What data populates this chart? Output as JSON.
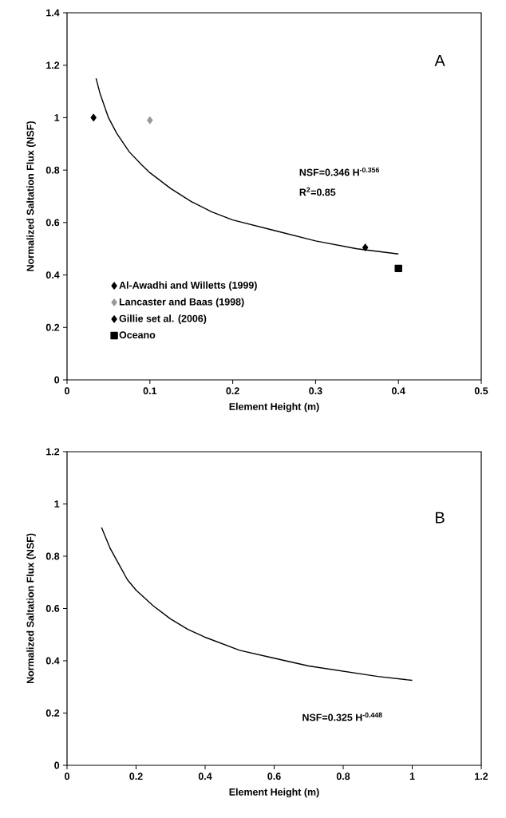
{
  "chart_data": [
    {
      "type": "scatter",
      "xlabel": "Element Height (m)",
      "ylabel": "Normalized Saltation Flux (NSF)",
      "xlim": [
        0,
        0.5
      ],
      "ylim": [
        0,
        1.4
      ],
      "xticks": [
        0,
        0.1,
        0.2,
        0.3,
        0.4,
        0.5
      ],
      "yticks": [
        0,
        0.2,
        0.4,
        0.6,
        0.8,
        1,
        1.2,
        1.4
      ],
      "grid": false,
      "legend": "bottom left",
      "annotations": [
        "A",
        "NSF=0.346 H$^{-0.356}$",
        "R$^{2}$=0.85"
      ],
      "series": [
        {
          "name": "Al-Awadhi and Willetts (1999)",
          "color": "#000000",
          "marker": "diamond",
          "x": [
            0.032
          ],
          "values": [
            1.0
          ]
        },
        {
          "name": "Lancaster and Baas (1998)",
          "color": "#999999",
          "marker": "diamond",
          "x": [
            0.1
          ],
          "values": [
            0.99
          ]
        },
        {
          "name": "Gillie set al. (2006)",
          "color": "#000000",
          "marker": "diamond",
          "x": [
            0.36
          ],
          "values": [
            0.505
          ]
        },
        {
          "name": "Oceano",
          "color": "#000000",
          "marker": "square",
          "x": [
            0.4
          ],
          "values": [
            0.425
          ]
        },
        {
          "type": "line",
          "color": "#000000",
          "marker": "none",
          "x": [
            0.035,
            0.04,
            0.05,
            0.06,
            0.075,
            0.09,
            0.1,
            0.125,
            0.15,
            0.175,
            0.2,
            0.25,
            0.3,
            0.35,
            0.4
          ],
          "values": [
            1.15,
            1.09,
            1.0,
            0.94,
            0.87,
            0.82,
            0.79,
            0.73,
            0.68,
            0.64,
            0.61,
            0.57,
            0.53,
            0.5,
            0.48
          ]
        }
      ]
    },
    {
      "type": "line",
      "xlabel": "Element Height (m)",
      "ylabel": "Normalized Saltation Flux (NSF)",
      "xlim": [
        0,
        1.2
      ],
      "ylim": [
        0,
        1.2
      ],
      "xticks": [
        0,
        0.2,
        0.4,
        0.6,
        0.8,
        1,
        1.2
      ],
      "yticks": [
        0,
        0.2,
        0.4,
        0.6,
        0.8,
        1,
        1.2
      ],
      "grid": false,
      "marker": "none",
      "annotations": [
        "B",
        "NSF=0.325 H$^{-0.448}$"
      ],
      "series": [
        {
          "color": "#000000",
          "x": [
            0.1,
            0.125,
            0.15,
            0.175,
            0.2,
            0.25,
            0.3,
            0.35,
            0.4,
            0.5,
            0.6,
            0.7,
            0.8,
            0.9,
            1.0
          ],
          "values": [
            0.91,
            0.83,
            0.77,
            0.71,
            0.67,
            0.61,
            0.56,
            0.52,
            0.49,
            0.44,
            0.41,
            0.38,
            0.36,
            0.34,
            0.325
          ]
        }
      ]
    }
  ]
}
